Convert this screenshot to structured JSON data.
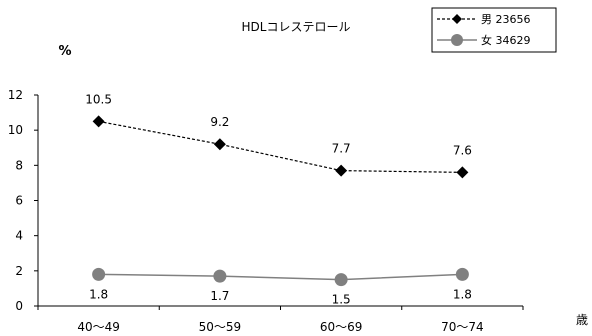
{
  "chart_data": {
    "type": "line",
    "title": "HDLコレステロール",
    "ylabel": "%",
    "xlabel": "歳",
    "categories": [
      "40～49",
      "50～59",
      "60～69",
      "70～74"
    ],
    "ylim": [
      0,
      12
    ],
    "yticks": [
      0,
      2,
      4,
      6,
      8,
      10,
      12
    ],
    "grid": false,
    "legend_position": "top-right",
    "series": [
      {
        "name": "男 23656",
        "values": [
          10.5,
          9.2,
          7.7,
          7.6
        ],
        "labels": [
          "10.5",
          "9.2",
          "7.7",
          "7.6"
        ],
        "color": "#000000",
        "line_style": "dashed",
        "marker": "diamond",
        "label_position": "above"
      },
      {
        "name": "女 34629",
        "values": [
          1.8,
          1.7,
          1.5,
          1.8
        ],
        "labels": [
          "1.8",
          "1.7",
          "1.5",
          "1.8"
        ],
        "color": "#808080",
        "line_style": "solid",
        "marker": "circle",
        "label_position": "below"
      }
    ]
  }
}
